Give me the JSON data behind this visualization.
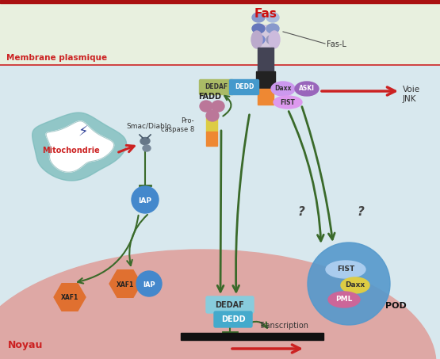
{
  "bg_top_color": "#e8f0df",
  "bg_cytoplasm_color": "#d8e8ee",
  "bg_nucleus_color": "#dea8a5",
  "membrane_color": "#cc2222",
  "membrane_label": "Membrane plasmique",
  "nucleus_label": "Noyau",
  "fas_label": "Fas",
  "fas_l_label": "Fas-L",
  "voie_jnk_label": "Voie\nJNK",
  "mitochondrie_label": "Mitochondrie",
  "smac_diablo_label": "Smac/Diablo",
  "transcription_label": "Transcription",
  "pro_caspase_label": "Pro-\ncaspase 8",
  "green_arrow_color": "#3a6a2a",
  "red_arrow_color": "#cc2222",
  "colors": {
    "DEDAF_top": "#aabb66",
    "DEDD_top": "#4499cc",
    "FADD": "#cc88aa",
    "fadd_circles": "#bb7799",
    "Daxx_top": "#cc99ee",
    "ASKI": "#9966bb",
    "FIST_top": "#dd99ee",
    "IAP_circle": "#4488cc",
    "XAF1_hex": "#e07030",
    "DEDAF_bot": "#88ccdd",
    "DEDD_bot": "#44aacc",
    "FIST_nuc": "#aaccee",
    "Daxx_nuc": "#ddcc44",
    "PML_nuc": "#cc6699",
    "POD_bg": "#5599cc",
    "black_block": "#222222",
    "procasp_yellow": "#ddcc44",
    "procasp_orange": "#ee8833",
    "smac_gray": "#778899",
    "mito_outer": "#7abbbb",
    "mito_inner": "#ffffff"
  },
  "figsize": [
    5.55,
    4.53
  ],
  "dpi": 100
}
